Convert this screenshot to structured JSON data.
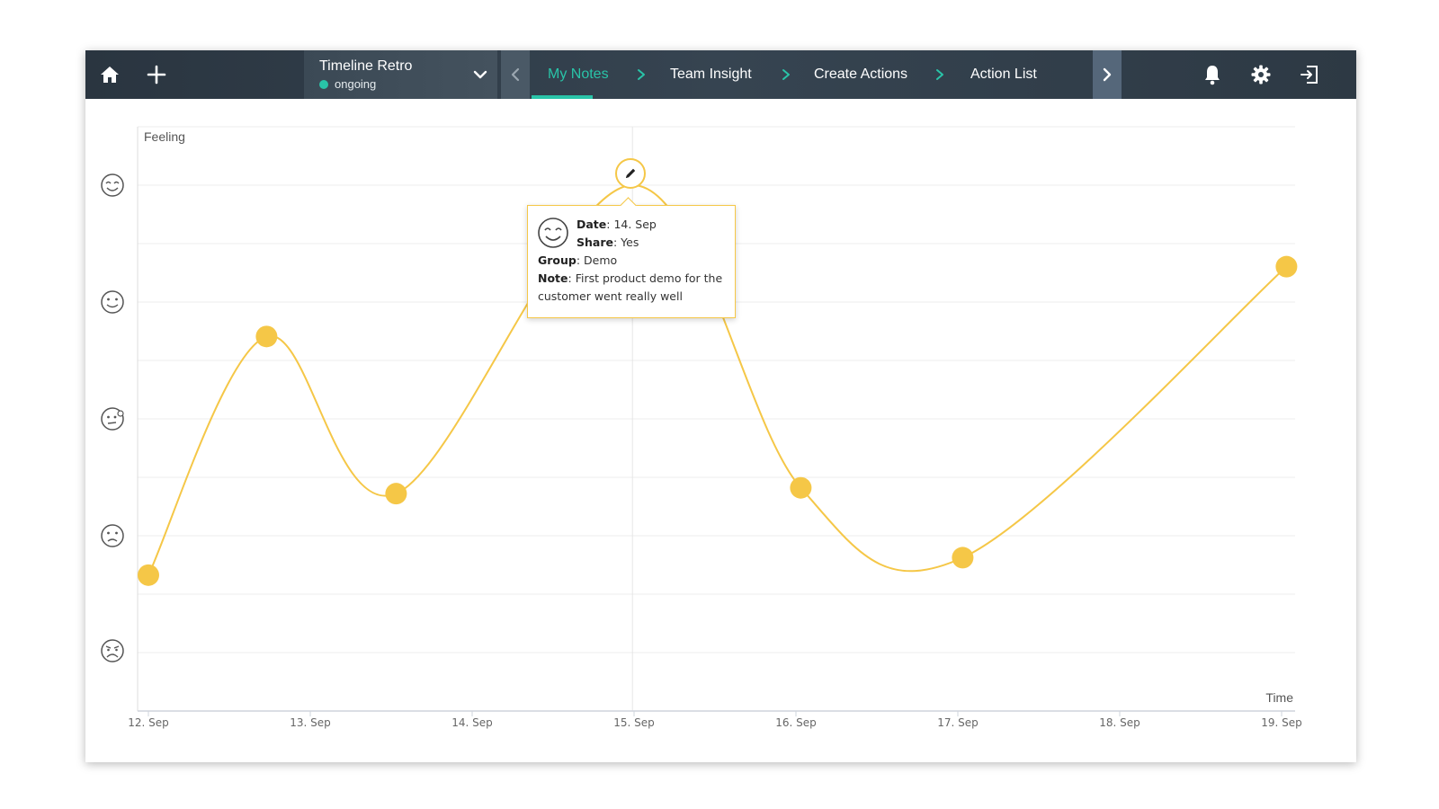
{
  "topbar": {
    "home_icon": "home-icon",
    "add_icon": "plus-icon",
    "retro": {
      "title": "Timeline Retro",
      "status": "ongoing",
      "status_color": "#29c4a8"
    },
    "steps": [
      {
        "label": "My Notes",
        "active": true
      },
      {
        "label": "Team Insight",
        "active": false
      },
      {
        "label": "Create Actions",
        "active": false
      },
      {
        "label": "Action List",
        "active": false
      }
    ],
    "right_icons": [
      "bell-icon",
      "gear-icon",
      "logout-icon"
    ],
    "accent_color": "#29c4a8"
  },
  "tooltip": {
    "date_label": "Date",
    "date_value": "14. Sep",
    "share_label": "Share",
    "share_value": "Yes",
    "group_label": "Group",
    "group_value": "Demo",
    "note_label": "Note",
    "note_line1": "First product demo for the",
    "note_line2": "customer went really well"
  },
  "chart_data": {
    "type": "line",
    "ylabel": "Feeling",
    "xlabel": "Time",
    "x_ticks": [
      "12. Sep",
      "13. Sep",
      "14. Sep",
      "15. Sep",
      "16. Sep",
      "17. Sep",
      "18. Sep",
      "19. Sep"
    ],
    "y_levels": [
      "very-sad-face-icon",
      "sad-face-icon",
      "neutral-face-icon",
      "smile-face-icon",
      "happy-face-icon"
    ],
    "ylim": [
      1,
      5.5
    ],
    "series": [
      {
        "color": "#f5c747",
        "points": [
          {
            "x": 12.0,
            "y": 1.65
          },
          {
            "x": 12.73,
            "y": 3.7
          },
          {
            "x": 13.53,
            "y": 2.35
          },
          {
            "x": 14.99,
            "y": 5.0
          },
          {
            "x": 16.03,
            "y": 2.4
          },
          {
            "x": 17.03,
            "y": 1.8
          },
          {
            "x": 19.03,
            "y": 4.3
          }
        ]
      }
    ],
    "grid": true,
    "highlight_index": 3
  }
}
